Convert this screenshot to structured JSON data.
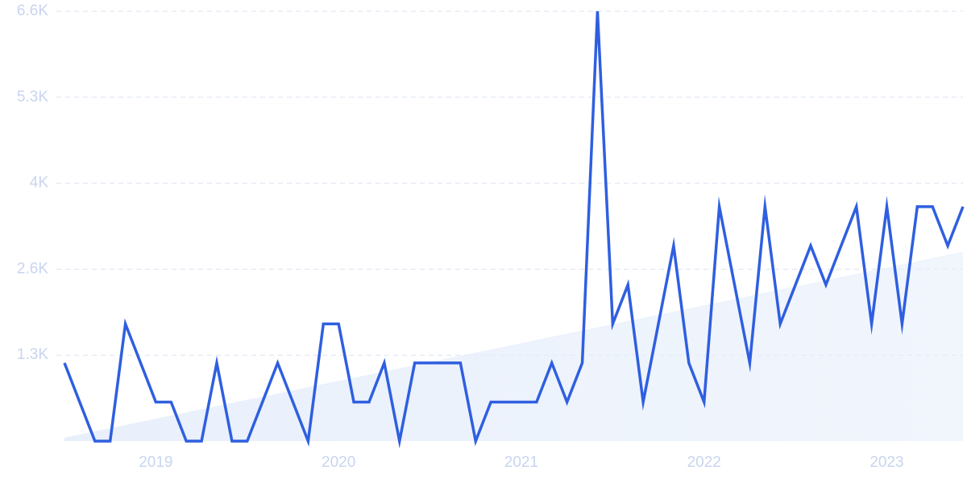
{
  "chart_data": {
    "type": "line",
    "categories": [
      null,
      null,
      null,
      null,
      null,
      null,
      "2019",
      null,
      null,
      null,
      null,
      null,
      null,
      null,
      null,
      null,
      null,
      null,
      "2020",
      null,
      null,
      null,
      null,
      null,
      null,
      null,
      null,
      null,
      null,
      null,
      "2021",
      null,
      null,
      null,
      null,
      null,
      null,
      null,
      null,
      null,
      null,
      null,
      "2022",
      null,
      null,
      null,
      null,
      null,
      null,
      null,
      null,
      null,
      null,
      null,
      "2023",
      null,
      null,
      null,
      null,
      null
    ],
    "series": [
      {
        "color": "#2f5fe0",
        "values": [
          1200,
          600,
          0,
          0,
          1800,
          1200,
          600,
          600,
          0,
          0,
          1200,
          0,
          0,
          600,
          1200,
          600,
          0,
          1800,
          1800,
          600,
          600,
          1200,
          0,
          1200,
          1200,
          1200,
          1200,
          0,
          600,
          600,
          600,
          600,
          1200,
          600,
          1200,
          6600,
          1800,
          2400,
          600,
          1800,
          3000,
          1200,
          600,
          3600,
          2400,
          1200,
          3600,
          1800,
          2400,
          3000,
          2400,
          3000,
          3600,
          1800,
          3600,
          1800,
          3600,
          3600,
          3000,
          3600
        ]
      },
      {
        "color": "#dfeafb",
        "type": "area",
        "values": [
          50,
          98,
          147,
          195,
          243,
          292,
          340,
          388,
          436,
          485,
          533,
          581,
          630,
          678,
          726,
          775,
          823,
          871,
          919,
          968,
          1016,
          1064,
          1113,
          1161,
          1209,
          1258,
          1306,
          1354,
          1402,
          1451,
          1499,
          1547,
          1596,
          1644,
          1692,
          1741,
          1789,
          1837,
          1885,
          1934,
          1982,
          2030,
          2079,
          2127,
          2175,
          2224,
          2272,
          2320,
          2368,
          2417,
          2465,
          2513,
          2562,
          2610,
          2658,
          2707,
          2755,
          2803,
          2851,
          2900
        ]
      }
    ],
    "ylim": [
      0,
      6600
    ],
    "yticks": [
      {
        "value": 1320,
        "label": "1.3K"
      },
      {
        "value": 2640,
        "label": "2.6K"
      },
      {
        "value": 3960,
        "label": "4K"
      },
      {
        "value": 5280,
        "label": "5.3K"
      },
      {
        "value": 6600,
        "label": "6.6K"
      }
    ],
    "grid": true
  }
}
